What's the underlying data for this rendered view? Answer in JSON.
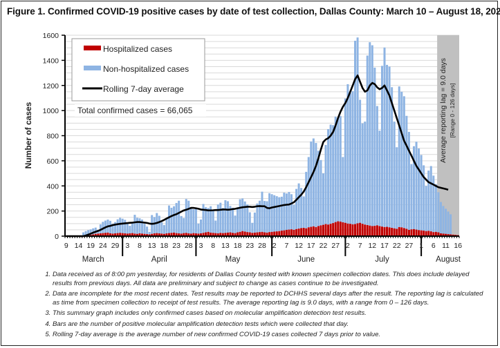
{
  "figure": {
    "title": "Figure 1. Confirmed COVID-19 positive cases by date of test collection, Dallas County: March 10 – August 18, 2020"
  },
  "chart_data": {
    "type": "bar",
    "stacked": true,
    "title": "Figure 1. Confirmed COVID-19 positive cases by date of test collection, Dallas County: March 10 – August 18, 2020",
    "xlabel": "",
    "ylabel": "Number of cases",
    "ylim": [
      0,
      1600
    ],
    "yticks": [
      0,
      200,
      400,
      600,
      800,
      1000,
      1200,
      1400,
      1600
    ],
    "grid": true,
    "legend_placement": "top-left",
    "legend": [
      {
        "name": "Hospitalized cases",
        "color": "#c00000",
        "kind": "bar"
      },
      {
        "name": "Non-hospitalized cases",
        "color": "#8eb4e3",
        "kind": "bar"
      },
      {
        "name": "Rolling 7-day average",
        "color": "#000000",
        "kind": "line"
      }
    ],
    "annotation_total": "Total confirmed cases = 66,065",
    "lag_band": {
      "label": "Average reporting lag = 9.0 days",
      "sublabel": "[Range 0 - 126 days]",
      "start_day_index": 152,
      "end_day_index": 160,
      "color": "#c0c0c0"
    },
    "start_date": "2020-03-09",
    "x_day_count": 161,
    "xtick_labels": [
      {
        "day": 0,
        "label": "9"
      },
      {
        "day": 5,
        "label": "14"
      },
      {
        "day": 10,
        "label": "19"
      },
      {
        "day": 15,
        "label": "24"
      },
      {
        "day": 20,
        "label": "29"
      },
      {
        "day": 25,
        "label": "3"
      },
      {
        "day": 30,
        "label": "8"
      },
      {
        "day": 35,
        "label": "13"
      },
      {
        "day": 40,
        "label": "18"
      },
      {
        "day": 45,
        "label": "23"
      },
      {
        "day": 50,
        "label": "28"
      },
      {
        "day": 55,
        "label": "3"
      },
      {
        "day": 60,
        "label": "8"
      },
      {
        "day": 65,
        "label": "13"
      },
      {
        "day": 70,
        "label": "18"
      },
      {
        "day": 75,
        "label": "23"
      },
      {
        "day": 80,
        "label": "28"
      },
      {
        "day": 85,
        "label": "2"
      },
      {
        "day": 90,
        "label": "7"
      },
      {
        "day": 95,
        "label": "12"
      },
      {
        "day": 100,
        "label": "17"
      },
      {
        "day": 105,
        "label": "22"
      },
      {
        "day": 110,
        "label": "27"
      },
      {
        "day": 115,
        "label": "2"
      },
      {
        "day": 120,
        "label": "7"
      },
      {
        "day": 125,
        "label": "12"
      },
      {
        "day": 130,
        "label": "17"
      },
      {
        "day": 135,
        "label": "22"
      },
      {
        "day": 140,
        "label": "27"
      },
      {
        "day": 145,
        "label": "1"
      },
      {
        "day": 150,
        "label": "6"
      },
      {
        "day": 155,
        "label": "11"
      },
      {
        "day": 160,
        "label": "16"
      }
    ],
    "month_labels": [
      {
        "day": 11,
        "label": "March"
      },
      {
        "day": 38,
        "label": "April"
      },
      {
        "day": 68,
        "label": "May"
      },
      {
        "day": 98,
        "label": "June"
      },
      {
        "day": 129,
        "label": "July"
      },
      {
        "day": 156,
        "label": "August"
      }
    ],
    "month_dividers": [
      23.5,
      53.5,
      84.5,
      114.5,
      145.5
    ],
    "series": [
      {
        "name": "Hospitalized cases",
        "values": [
          0,
          0,
          0,
          0,
          0,
          0,
          0,
          2,
          5,
          8,
          10,
          14,
          18,
          20,
          22,
          24,
          26,
          28,
          22,
          20,
          22,
          24,
          26,
          24,
          22,
          20,
          22,
          24,
          20,
          18,
          22,
          20,
          18,
          16,
          14,
          18,
          22,
          24,
          22,
          20,
          18,
          22,
          24,
          26,
          28,
          24,
          22,
          20,
          24,
          26,
          22,
          20,
          24,
          22,
          20,
          22,
          26,
          30,
          34,
          28,
          26,
          24,
          22,
          26,
          24,
          26,
          28,
          30,
          26,
          24,
          30,
          34,
          40,
          36,
          32,
          30,
          26,
          28,
          30,
          32,
          34,
          30,
          28,
          32,
          34,
          36,
          38,
          40,
          44,
          46,
          50,
          52,
          54,
          50,
          56,
          60,
          64,
          66,
          62,
          70,
          74,
          78,
          72,
          80,
          86,
          90,
          96,
          92,
          98,
          104,
          112,
          118,
          116,
          110,
          106,
          100,
          98,
          94,
          96,
          102,
          106,
          98,
          92,
          88,
          84,
          80,
          82,
          86,
          80,
          76,
          72,
          74,
          70,
          66,
          62,
          58,
          72,
          70,
          64,
          58,
          50,
          54,
          56,
          52,
          48,
          46,
          44,
          40,
          42,
          38,
          32,
          34,
          30,
          22,
          20,
          18,
          16,
          14,
          12,
          10,
          8
        ],
        "color": "#c00000"
      },
      {
        "name": "Non-hospitalized cases",
        "values": [
          0,
          0,
          0,
          0,
          0,
          0,
          0,
          28,
          35,
          40,
          44,
          48,
          50,
          30,
          72,
          90,
          98,
          104,
          100,
          78,
          90,
          110,
          120,
          115,
          108,
          85,
          60,
          90,
          150,
          128,
          120,
          112,
          80,
          60,
          20,
          150,
          130,
          160,
          140,
          90,
          70,
          120,
          220,
          200,
          210,
          240,
          260,
          140,
          120,
          270,
          260,
          210,
          190,
          200,
          80,
          110,
          230,
          200,
          190,
          210,
          180,
          100,
          230,
          240,
          200,
          260,
          250,
          210,
          200,
          140,
          200,
          260,
          260,
          240,
          220,
          160,
          80,
          160,
          230,
          250,
          320,
          250,
          250,
          310,
          300,
          290,
          280,
          270,
          270,
          300,
          290,
          300,
          280,
          200,
          320,
          360,
          320,
          250,
          450,
          560,
          680,
          700,
          670,
          600,
          520,
          410,
          630,
          760,
          790,
          780,
          840,
          820,
          840,
          520,
          990,
          1110,
          1040,
          1060,
          1460,
          1480,
          980,
          800,
          820,
          1350,
          1460,
          1440,
          1260,
          950,
          760,
          1280,
          1430,
          1290,
          1280,
          1120,
          850,
          650,
          1120,
          1080,
          1050,
          900,
          780,
          520,
          660,
          700,
          650,
          600,
          520,
          360,
          480,
          520,
          450,
          380,
          320,
          250,
          220,
          200,
          180,
          160
        ],
        "color": "#8eb4e3"
      },
      {
        "name": "Rolling 7-day average",
        "values": [
          0,
          0,
          0,
          0,
          0,
          0,
          0,
          0,
          5,
          12,
          20,
          28,
          35,
          42,
          50,
          60,
          70,
          78,
          82,
          88,
          92,
          95,
          98,
          100,
          102,
          104,
          106,
          108,
          110,
          112,
          112,
          110,
          108,
          105,
          100,
          98,
          100,
          105,
          112,
          120,
          130,
          140,
          150,
          160,
          168,
          175,
          185,
          195,
          205,
          210,
          218,
          225,
          225,
          222,
          218,
          212,
          210,
          208,
          205,
          205,
          206,
          208,
          208,
          210,
          212,
          212,
          210,
          212,
          215,
          218,
          222,
          226,
          230,
          232,
          234,
          234,
          232,
          234,
          238,
          240,
          238,
          238,
          225,
          222,
          228,
          232,
          236,
          240,
          244,
          248,
          250,
          252,
          260,
          270,
          290,
          310,
          330,
          355,
          390,
          430,
          470,
          510,
          560,
          620,
          690,
          750,
          770,
          780,
          800,
          830,
          880,
          940,
          990,
          1030,
          1060,
          1100,
          1150,
          1200,
          1250,
          1280,
          1230,
          1180,
          1150,
          1160,
          1200,
          1220,
          1210,
          1185,
          1170,
          1180,
          1200,
          1160,
          1120,
          1060,
          1000,
          940,
          880,
          820,
          760,
          720,
          680,
          640,
          600,
          560,
          530,
          500,
          470,
          450,
          430,
          420,
          410,
          400,
          390,
          385,
          380,
          375,
          370
        ],
        "color": "#000000"
      }
    ]
  },
  "notes": [
    "Data received as of 8:00 pm yesterday, for residents of Dallas County tested with known specimen collection dates.  This does include delayed results from previous days. All data are preliminary and subject to change as cases continue to be investigated.",
    "Data are incomplete for the most recent dates. Test results may be reported to DCHHS several days after the result. The reporting lag is calculated as time from specimen collection to receipt of test results. The average reporting lag is 9.0 days, with a range from 0 – 126 days.",
    "This summary graph includes only confirmed cases based on molecular amplification detection test results.",
    "Bars are the number of positive molecular amplification detection tests which were collected that day.",
    "Rolling 7-day average is the average number of new confirmed COVID-19 cases collected 7 days prior to value."
  ]
}
